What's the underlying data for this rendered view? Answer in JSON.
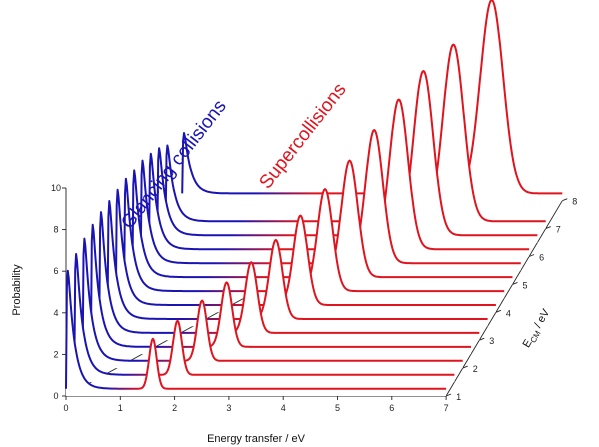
{
  "chart_data": {
    "type": "line",
    "projection": "3d-waterfall",
    "title": "",
    "xlabel": "Energy transfer / eV",
    "ylabel": "Probability",
    "zlabel_main": "E",
    "zlabel_sub": "CM",
    "zlabel_suffix": " / eV",
    "xlim": [
      0,
      7
    ],
    "ylim": [
      0,
      10
    ],
    "zlim": [
      1,
      8
    ],
    "x_ticks": [
      "0",
      "1",
      "2",
      "3",
      "4",
      "5",
      "6",
      "7"
    ],
    "y_ticks": [
      "0",
      "2",
      "4",
      "6",
      "8",
      "10"
    ],
    "z_ticks": [
      "1",
      "2",
      "3",
      "4",
      "5",
      "6",
      "7",
      "8"
    ],
    "glancing_color": "#1a14b4",
    "super_color": "#e0141e",
    "annotations": [
      {
        "text": "Glancing collisions",
        "color": "#1a14b4"
      },
      {
        "text": "Supercollisions",
        "color": "#e0141e"
      }
    ],
    "series": [
      {
        "ecm": 1.0,
        "glancing_peak": 8.4,
        "super_peak": 2.4,
        "super_center": 1.6,
        "super_width": 0.07
      },
      {
        "ecm": 1.5,
        "glancing_peak": 8.6,
        "super_peak": 2.6,
        "super_center": 1.9,
        "super_width": 0.08
      },
      {
        "ecm": 2.0,
        "glancing_peak": 8.7,
        "super_peak": 2.9,
        "super_center": 2.2,
        "super_width": 0.09
      },
      {
        "ecm": 2.5,
        "glancing_peak": 8.7,
        "super_peak": 3.1,
        "super_center": 2.5,
        "super_width": 0.1
      },
      {
        "ecm": 3.0,
        "glancing_peak": 8.6,
        "super_peak": 3.4,
        "super_center": 2.8,
        "super_width": 0.11
      },
      {
        "ecm": 3.5,
        "glancing_peak": 8.4,
        "super_peak": 3.8,
        "super_center": 3.1,
        "super_width": 0.12
      },
      {
        "ecm": 4.0,
        "glancing_peak": 8.2,
        "super_peak": 4.3,
        "super_center": 3.4,
        "super_width": 0.13
      },
      {
        "ecm": 4.5,
        "glancing_peak": 8.0,
        "super_peak": 4.9,
        "super_center": 3.7,
        "super_width": 0.14
      },
      {
        "ecm": 5.0,
        "glancing_peak": 7.6,
        "super_peak": 5.6,
        "super_center": 4.0,
        "super_width": 0.15
      },
      {
        "ecm": 5.5,
        "glancing_peak": 7.3,
        "super_peak": 6.4,
        "super_center": 4.3,
        "super_width": 0.16
      },
      {
        "ecm": 6.0,
        "glancing_peak": 6.8,
        "super_peak": 7.2,
        "super_center": 4.6,
        "super_width": 0.17
      },
      {
        "ecm": 6.5,
        "glancing_peak": 6.2,
        "super_peak": 7.9,
        "super_center": 4.9,
        "super_width": 0.18
      },
      {
        "ecm": 7.0,
        "glancing_peak": 5.4,
        "super_peak": 8.5,
        "super_center": 5.3,
        "super_width": 0.19
      },
      {
        "ecm": 8.0,
        "glancing_peak": 4.3,
        "super_peak": 9.3,
        "super_center": 5.7,
        "super_width": 0.21
      }
    ]
  }
}
